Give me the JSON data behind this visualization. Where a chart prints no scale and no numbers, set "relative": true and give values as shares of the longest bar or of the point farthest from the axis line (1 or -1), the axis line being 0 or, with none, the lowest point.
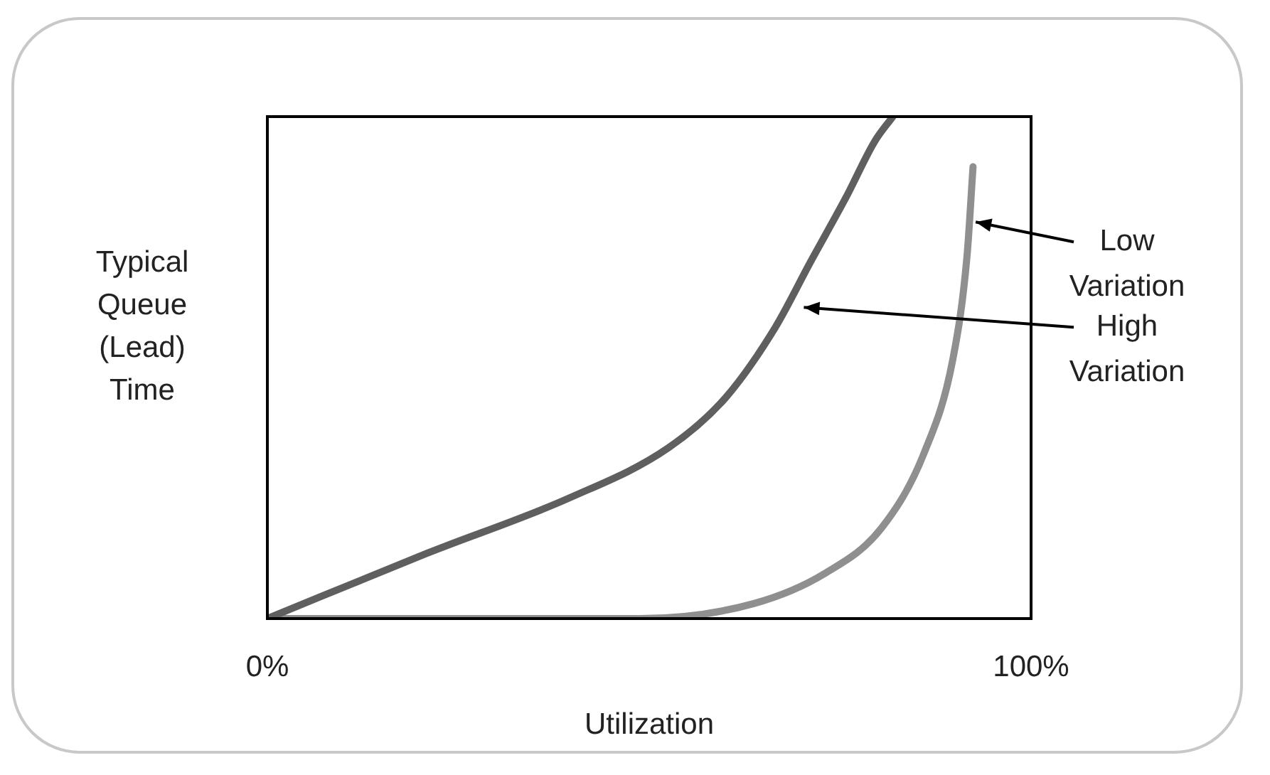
{
  "chart_data": {
    "type": "line",
    "relative": true,
    "xlabel": "Utilization",
    "ylabel": "Typical Queue (Lead) Time",
    "xlim": [
      0,
      100
    ],
    "xticks": [
      {
        "value": 0,
        "label": "0%"
      },
      {
        "value": 100,
        "label": "100%"
      }
    ],
    "legend": false,
    "marker": "none",
    "line_style": "solid",
    "series": [
      {
        "color": "#5f5f5f",
        "x": [
          0,
          20.9,
          39.5,
          52.5,
          60,
          66.5,
          71.1,
          75.8,
          79.5,
          81.9
        ],
        "values": [
          0,
          0.13,
          0.24,
          0.34,
          0.44,
          0.58,
          0.71,
          0.84,
          0.95,
          1
        ]
      },
      {
        "color": "#8f8f8f",
        "x": [
          0,
          20,
          48.8,
          63.7,
          73,
          80.4,
          86,
          89.8,
          91.6,
          92.4
        ],
        "values": [
          0,
          0,
          0,
          0.03,
          0.09,
          0.18,
          0.33,
          0.52,
          0.72,
          0.9
        ]
      }
    ],
    "annotations": [
      {
        "text": "Low Variation",
        "x": 92,
        "y": 0.79
      },
      {
        "text": "High Variation",
        "x": 69.5,
        "y": 0.62
      }
    ]
  }
}
